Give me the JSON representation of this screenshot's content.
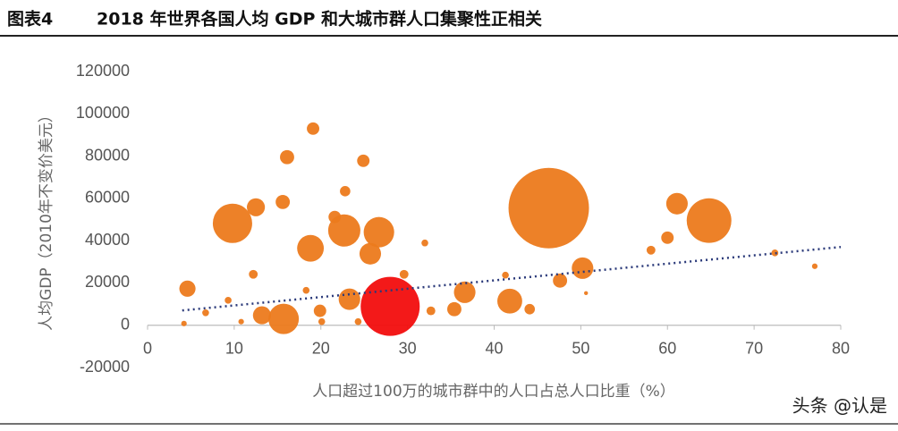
{
  "header": {
    "label": "图表4"
  },
  "chart_data": {
    "type": "bubble",
    "title": "2018 年世界各国人均 GDP 和大城市群人口集聚性正相关",
    "x_label": "人口超过100万的城市群中的人口占总人口比重（%）",
    "y_label": "人均GDP（2010年不变价美元）",
    "xlim": [
      0,
      80
    ],
    "xticks": [
      0,
      10,
      20,
      30,
      40,
      50,
      60,
      70,
      80
    ],
    "ylim": [
      -20000,
      120000
    ],
    "yticks": [
      -20000,
      0,
      20000,
      40000,
      60000,
      80000,
      100000,
      120000
    ],
    "grid": false,
    "series": [
      {
        "color": "#ec7a1c",
        "x": [
          9.8,
          12.5,
          15.6,
          16.1,
          19.1,
          18.8,
          22.8,
          21.6,
          22.7,
          24.9,
          26.7,
          25.7,
          32.0,
          46.3,
          61.1,
          64.8,
          60.0,
          58.1,
          50.2,
          47.6,
          41.3,
          4.6,
          12.2,
          9.3,
          29.6,
          23.3,
          15.7,
          13.2,
          36.6,
          41.8,
          35.4,
          44.1,
          19.9,
          32.7,
          72.4,
          77.0,
          18.3,
          6.7,
          20.1,
          4.2,
          10.8,
          24.3,
          50.6
        ],
        "values": [
          48200,
          55800,
          58300,
          79500,
          93000,
          36400,
          63400,
          51200,
          44800,
          77800,
          44000,
          33800,
          38900,
          55400,
          57500,
          49500,
          41400,
          35500,
          27000,
          21100,
          23700,
          17300,
          24100,
          11800,
          24100,
          12300,
          3000,
          4700,
          15600,
          11400,
          7600,
          7600,
          6800,
          6800,
          34200,
          27900,
          16500,
          5900,
          1700,
          800,
          1700,
          1700,
          15200
        ],
        "sizes": [
          100,
          21,
          13,
          13,
          10,
          46,
          7,
          10,
          67,
          10,
          60,
          30,
          3,
          418,
          30,
          129,
          10,
          5,
          30,
          13,
          3,
          17,
          5,
          3,
          5,
          30,
          60,
          21,
          30,
          40,
          13,
          7,
          10,
          5,
          3,
          2,
          3,
          3,
          3,
          2,
          2,
          3,
          1
        ]
      },
      {
        "color": "#f20d0d",
        "x": [
          28.0
        ],
        "values": [
          8900
        ],
        "sizes": [
          225
        ]
      }
    ],
    "trendline": {
      "color": "#2b3a7a",
      "x": [
        4,
        80
      ],
      "y": [
        7000,
        37000
      ]
    }
  },
  "watermark": "头条 @认是"
}
